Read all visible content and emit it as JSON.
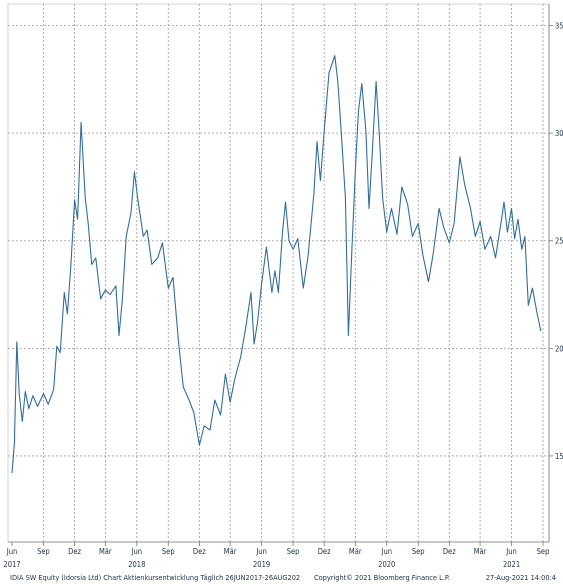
{
  "chart_data": {
    "type": "line",
    "title": "",
    "xlabel": "",
    "ylabel": "",
    "ylim": [
      11,
      36
    ],
    "yticks": [
      15,
      20,
      25,
      30,
      35
    ],
    "xticks": [
      {
        "label": "Jun",
        "year": "2017",
        "date": "2017-06-01"
      },
      {
        "label": "Sep",
        "year": "",
        "date": "2017-09-01"
      },
      {
        "label": "Dez",
        "year": "",
        "date": "2017-12-01"
      },
      {
        "label": "Mär",
        "year": "",
        "date": "2018-03-01"
      },
      {
        "label": "Jun",
        "year": "2018",
        "date": "2018-06-01"
      },
      {
        "label": "Sep",
        "year": "",
        "date": "2018-09-01"
      },
      {
        "label": "Dez",
        "year": "",
        "date": "2018-12-01"
      },
      {
        "label": "Mär",
        "year": "",
        "date": "2019-03-01"
      },
      {
        "label": "Jun",
        "year": "2019",
        "date": "2019-06-01"
      },
      {
        "label": "Sep",
        "year": "",
        "date": "2019-09-01"
      },
      {
        "label": "Dez",
        "year": "",
        "date": "2019-12-01"
      },
      {
        "label": "Mär",
        "year": "",
        "date": "2020-03-01"
      },
      {
        "label": "Jun",
        "year": "2020",
        "date": "2020-06-01"
      },
      {
        "label": "Sep",
        "year": "",
        "date": "2020-09-01"
      },
      {
        "label": "Dez",
        "year": "",
        "date": "2020-12-01"
      },
      {
        "label": "Mär",
        "year": "",
        "date": "2021-03-01"
      },
      {
        "label": "Jun",
        "year": "2021",
        "date": "2021-06-01"
      },
      {
        "label": "Sep",
        "year": "",
        "date": "2021-09-01"
      }
    ],
    "series": [
      {
        "color": "#2f6f9f",
        "points": [
          [
            "2017-06-01",
            14.2
          ],
          [
            "2017-06-08",
            15.6
          ],
          [
            "2017-06-15",
            20.3
          ],
          [
            "2017-06-22",
            17.9
          ],
          [
            "2017-07-01",
            16.6
          ],
          [
            "2017-07-10",
            18.0
          ],
          [
            "2017-07-20",
            17.2
          ],
          [
            "2017-08-01",
            17.8
          ],
          [
            "2017-08-15",
            17.3
          ],
          [
            "2017-09-01",
            17.9
          ],
          [
            "2017-09-15",
            17.4
          ],
          [
            "2017-10-01",
            18.1
          ],
          [
            "2017-10-10",
            20.1
          ],
          [
            "2017-10-20",
            19.8
          ],
          [
            "2017-11-01",
            22.6
          ],
          [
            "2017-11-10",
            21.6
          ],
          [
            "2017-11-20",
            23.8
          ],
          [
            "2017-12-01",
            26.9
          ],
          [
            "2017-12-10",
            26.0
          ],
          [
            "2017-12-20",
            30.5
          ],
          [
            "2018-01-01",
            27.0
          ],
          [
            "2018-01-10",
            25.8
          ],
          [
            "2018-01-20",
            23.9
          ],
          [
            "2018-02-01",
            24.2
          ],
          [
            "2018-02-15",
            22.3
          ],
          [
            "2018-03-01",
            22.7
          ],
          [
            "2018-03-15",
            22.5
          ],
          [
            "2018-04-01",
            22.9
          ],
          [
            "2018-04-10",
            20.6
          ],
          [
            "2018-04-20",
            22.3
          ],
          [
            "2018-05-01",
            25.2
          ],
          [
            "2018-05-15",
            26.3
          ],
          [
            "2018-05-25",
            28.2
          ],
          [
            "2018-06-05",
            26.8
          ],
          [
            "2018-06-20",
            25.2
          ],
          [
            "2018-07-01",
            25.5
          ],
          [
            "2018-07-15",
            23.9
          ],
          [
            "2018-08-01",
            24.2
          ],
          [
            "2018-08-15",
            24.9
          ],
          [
            "2018-09-01",
            22.8
          ],
          [
            "2018-09-15",
            23.3
          ],
          [
            "2018-10-01",
            20.3
          ],
          [
            "2018-10-15",
            18.2
          ],
          [
            "2018-11-01",
            17.6
          ],
          [
            "2018-11-15",
            17.0
          ],
          [
            "2018-12-01",
            15.5
          ],
          [
            "2018-12-15",
            16.4
          ],
          [
            "2019-01-01",
            16.2
          ],
          [
            "2019-01-15",
            17.6
          ],
          [
            "2019-02-01",
            16.9
          ],
          [
            "2019-02-15",
            18.8
          ],
          [
            "2019-03-01",
            17.5
          ],
          [
            "2019-03-15",
            18.6
          ],
          [
            "2019-04-01",
            19.6
          ],
          [
            "2019-04-15",
            20.9
          ],
          [
            "2019-05-01",
            22.6
          ],
          [
            "2019-05-10",
            20.2
          ],
          [
            "2019-05-20",
            21.2
          ],
          [
            "2019-06-01",
            23.0
          ],
          [
            "2019-06-15",
            24.7
          ],
          [
            "2019-07-01",
            22.6
          ],
          [
            "2019-07-10",
            23.6
          ],
          [
            "2019-07-20",
            22.6
          ],
          [
            "2019-08-01",
            25.4
          ],
          [
            "2019-08-10",
            26.8
          ],
          [
            "2019-08-20",
            25.0
          ],
          [
            "2019-09-01",
            24.6
          ],
          [
            "2019-09-15",
            25.1
          ],
          [
            "2019-10-01",
            22.8
          ],
          [
            "2019-10-15",
            24.3
          ],
          [
            "2019-11-01",
            27.2
          ],
          [
            "2019-11-10",
            29.6
          ],
          [
            "2019-11-20",
            27.8
          ],
          [
            "2019-12-01",
            30.1
          ],
          [
            "2019-12-15",
            32.8
          ],
          [
            "2020-01-01",
            33.6
          ],
          [
            "2020-01-10",
            32.4
          ],
          [
            "2020-01-20",
            30.0
          ],
          [
            "2020-02-01",
            27.0
          ],
          [
            "2020-02-10",
            20.6
          ],
          [
            "2020-02-20",
            24.6
          ],
          [
            "2020-03-01",
            28.2
          ],
          [
            "2020-03-10",
            31.0
          ],
          [
            "2020-03-20",
            32.3
          ],
          [
            "2020-04-01",
            30.1
          ],
          [
            "2020-04-10",
            26.5
          ],
          [
            "2020-04-20",
            29.2
          ],
          [
            "2020-05-01",
            32.4
          ],
          [
            "2020-05-10",
            30.0
          ],
          [
            "2020-05-20",
            27.0
          ],
          [
            "2020-06-01",
            25.4
          ],
          [
            "2020-06-15",
            26.5
          ],
          [
            "2020-07-01",
            25.3
          ],
          [
            "2020-07-15",
            27.5
          ],
          [
            "2020-08-01",
            26.7
          ],
          [
            "2020-08-15",
            25.2
          ],
          [
            "2020-09-01",
            25.8
          ],
          [
            "2020-09-15",
            24.3
          ],
          [
            "2020-10-01",
            23.1
          ],
          [
            "2020-10-15",
            24.4
          ],
          [
            "2020-11-01",
            26.5
          ],
          [
            "2020-11-15",
            25.6
          ],
          [
            "2020-12-01",
            24.9
          ],
          [
            "2020-12-15",
            25.8
          ],
          [
            "2021-01-01",
            28.9
          ],
          [
            "2021-01-15",
            27.6
          ],
          [
            "2021-02-01",
            26.5
          ],
          [
            "2021-02-15",
            25.2
          ],
          [
            "2021-03-01",
            25.9
          ],
          [
            "2021-03-15",
            24.6
          ],
          [
            "2021-04-01",
            25.2
          ],
          [
            "2021-04-15",
            24.2
          ],
          [
            "2021-05-01",
            25.8
          ],
          [
            "2021-05-10",
            26.8
          ],
          [
            "2021-05-20",
            25.4
          ],
          [
            "2021-06-01",
            26.5
          ],
          [
            "2021-06-10",
            25.1
          ],
          [
            "2021-06-20",
            26.0
          ],
          [
            "2021-07-01",
            24.6
          ],
          [
            "2021-07-10",
            25.2
          ],
          [
            "2021-07-20",
            22.0
          ],
          [
            "2021-08-01",
            22.8
          ],
          [
            "2021-08-15",
            21.6
          ],
          [
            "2021-08-26",
            20.8
          ]
        ]
      }
    ]
  },
  "footer": {
    "left": "IDIA SW Equity (Idorsia Ltd) Chart Aktienkursentwicklung  Täglich 26JUN2017-26AUG202",
    "center": "Copyright© 2021 Bloomberg Finance L.P.",
    "right": "27-Aug-2021 14:00:4"
  }
}
